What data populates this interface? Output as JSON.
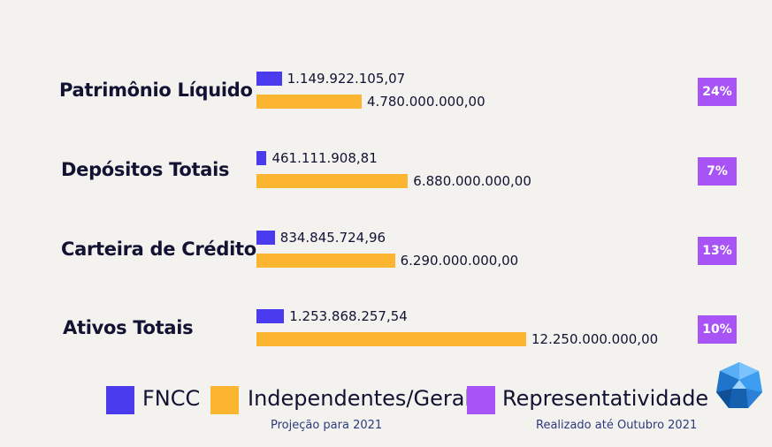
{
  "colors": {
    "fncc": "#4a3bef",
    "independentes": "#fbb531",
    "representatividade": "#a753f5",
    "text": "#121233",
    "background": "#f3f2ef"
  },
  "chart_data": {
    "type": "bar",
    "orientation": "horizontal",
    "categories": [
      "Patrimônio Líquido",
      "Depósitos Totais",
      "Carteira de Crédito",
      "Ativos Totais"
    ],
    "series": [
      {
        "name": "FNCC",
        "values": [
          1149922105.07,
          461111908.81,
          834845724.96,
          1253868257.54
        ],
        "labels": [
          "1.149.922.105,07",
          "461.111.908,81",
          "834.845.724,96",
          "1.253.868.257,54"
        ]
      },
      {
        "name": "Independentes/Geral",
        "values": [
          4780000000.0,
          6880000000.0,
          6290000000.0,
          12250000000.0
        ],
        "labels": [
          "4.780.000.000,00",
          "6.880.000.000,00",
          "6.290.000.000,00",
          "12.250.000.000,00"
        ]
      }
    ],
    "representatividade": [
      "24%",
      "7%",
      "13%",
      "10%"
    ],
    "legend": {
      "position": "bottom",
      "items": [
        "FNCC",
        "Independentes/Geral",
        "Representatividade"
      ]
    },
    "footnotes": [
      "Projeção para 2021",
      "Realizado até Outubro 2021"
    ],
    "grid": false
  }
}
